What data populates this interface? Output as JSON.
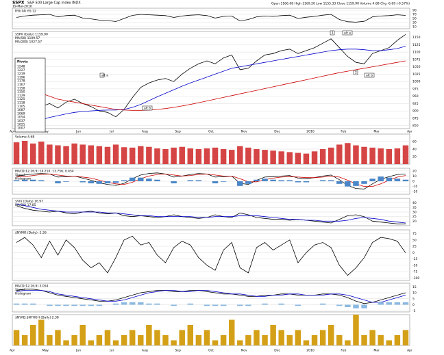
{
  "header": {
    "symbol": "$SPX",
    "name": "S&P 500 Large Cap Index INDX",
    "date": "19-Mar-2010",
    "quote": "Open 1166.68  High 1169.20  Low 1155.33  Close 1159.90  Volume 4.6B  Chg -6.69 (-0.57%)"
  },
  "months": [
    "Apr",
    "May",
    "Jun",
    "Jul",
    "Aug",
    "Sep",
    "Oct",
    "Nov",
    "Dec",
    "2010",
    "Feb",
    "Mar",
    "Apr"
  ],
  "pivots": {
    "title": "Pivots",
    "values": [
      "1248",
      "1227",
      "1219",
      "1196",
      "1178",
      "1167",
      "1158",
      "1150",
      "1129",
      "1125",
      "1118",
      "1105",
      "1087",
      "1069",
      "1054",
      "1037",
      "1021",
      "1007"
    ]
  },
  "annotations": [
    "1",
    "alt a",
    "2",
    "alt b",
    "alt a",
    "alt b"
  ],
  "chart_data": [
    {
      "type": "line",
      "ylim": [
        0,
        100
      ],
      "yticks": [
        10,
        30,
        50,
        70,
        90
      ],
      "series": [
        {
          "name": "RSI(14) 65.12",
          "color": "#000000",
          "values": [
            55,
            62,
            66,
            68,
            70,
            58,
            64,
            66,
            52,
            48,
            42,
            40,
            35,
            50,
            65,
            70,
            68,
            66,
            64,
            55,
            62,
            66,
            68,
            64,
            52,
            60,
            62,
            38,
            45,
            58,
            62,
            60,
            64,
            66,
            50,
            56,
            60,
            66,
            70,
            45,
            34,
            32,
            36,
            58,
            62,
            64,
            68,
            65
          ]
        }
      ]
    },
    {
      "type": "line",
      "ylim": [
        840,
        1170
      ],
      "yticks": [
        850,
        875,
        900,
        925,
        950,
        975,
        1000,
        1025,
        1050,
        1075,
        1100,
        1125,
        1150
      ],
      "series": [
        {
          "name": "$SPX (Daily) 1159.90",
          "color": "#000000",
          "values": [
            870,
            890,
            905,
            915,
            925,
            910,
            930,
            940,
            925,
            915,
            900,
            895,
            880,
            905,
            945,
            980,
            995,
            1005,
            1010,
            1000,
            1025,
            1045,
            1060,
            1070,
            1060,
            1080,
            1090,
            1040,
            1045,
            1070,
            1090,
            1095,
            1105,
            1110,
            1095,
            1105,
            1115,
            1130,
            1145,
            1115,
            1085,
            1065,
            1060,
            1095,
            1105,
            1115,
            1140,
            1160
          ]
        },
        {
          "name": "MA(50) 1109.57",
          "color": "#0000cc",
          "values": [
            850,
            855,
            862,
            870,
            878,
            884,
            890,
            895,
            898,
            900,
            902,
            903,
            903,
            905,
            912,
            922,
            935,
            948,
            960,
            972,
            984,
            995,
            1005,
            1015,
            1025,
            1035,
            1045,
            1050,
            1055,
            1060,
            1065,
            1070,
            1075,
            1080,
            1085,
            1090,
            1095,
            1100,
            1105,
            1108,
            1110,
            1110,
            1108,
            1105,
            1105,
            1108,
            1112,
            1120
          ]
        },
        {
          "name": "MA(200) 1027.57",
          "color": "#cc0000",
          "values": [
            990,
            980,
            970,
            960,
            950,
            940,
            935,
            930,
            925,
            920,
            915,
            910,
            905,
            903,
            902,
            902,
            903,
            905,
            908,
            912,
            917,
            922,
            928,
            934,
            940,
            946,
            952,
            958,
            964,
            970,
            976,
            982,
            988,
            994,
            1000,
            1006,
            1012,
            1018,
            1024,
            1030,
            1035,
            1040,
            1045,
            1050,
            1055,
            1060,
            1065,
            1070
          ]
        }
      ]
    },
    {
      "type": "line",
      "ylim": [
        0,
        80
      ],
      "yticks": [
        20,
        40,
        60
      ],
      "series": [
        {
          "name": "Volume 4.6B",
          "color": "#d64545",
          "style": "bar",
          "values": [
            58,
            62,
            55,
            60,
            52,
            50,
            48,
            55,
            52,
            50,
            48,
            46,
            52,
            45,
            44,
            48,
            46,
            42,
            40,
            44,
            46,
            42,
            40,
            42,
            44,
            40,
            38,
            48,
            44,
            40,
            38,
            36,
            34,
            32,
            30,
            28,
            34,
            40,
            44,
            52,
            56,
            50,
            46,
            44,
            42,
            40,
            42,
            50
          ]
        }
      ]
    },
    {
      "type": "line",
      "ylim": [
        -25,
        25
      ],
      "yticks": [
        -20,
        -10,
        0,
        10,
        20
      ],
      "series": [
        {
          "name": "MACD(12,26,9) 14.210, 13.756, 0.454",
          "color": "#000000",
          "values": [
            10,
            12,
            14,
            15,
            14,
            8,
            9,
            10,
            6,
            2,
            -3,
            -6,
            -8,
            -4,
            5,
            12,
            15,
            16,
            14,
            8,
            10,
            13,
            15,
            14,
            8,
            9,
            10,
            -4,
            -6,
            2,
            8,
            9,
            10,
            11,
            6,
            5,
            7,
            10,
            12,
            3,
            -8,
            -14,
            -15,
            -5,
            4,
            9,
            13,
            14
          ]
        },
        {
          "name": "Signal",
          "color": "#cc0000",
          "values": [
            8,
            9,
            11,
            13,
            14,
            12,
            10,
            10,
            8,
            6,
            2,
            -2,
            -5,
            -6,
            -2,
            5,
            10,
            13,
            14,
            12,
            10,
            11,
            13,
            14,
            12,
            10,
            10,
            5,
            -1,
            -1,
            3,
            6,
            8,
            9,
            8,
            7,
            7,
            8,
            10,
            8,
            2,
            -5,
            -10,
            -10,
            -5,
            2,
            8,
            11
          ]
        },
        {
          "name": "Histogram",
          "color": "#4a86c8",
          "style": "bar",
          "values": [
            2,
            3,
            3,
            2,
            0,
            -4,
            -1,
            0,
            -2,
            -4,
            -5,
            -4,
            -3,
            2,
            7,
            7,
            5,
            3,
            0,
            -4,
            0,
            2,
            2,
            0,
            -4,
            -1,
            0,
            -9,
            -5,
            3,
            5,
            3,
            2,
            2,
            -2,
            -2,
            0,
            2,
            2,
            -5,
            -10,
            -9,
            -5,
            5,
            9,
            7,
            5,
            3
          ]
        }
      ]
    },
    {
      "type": "line",
      "ylim": [
        15,
        45
      ],
      "yticks": [
        20,
        25,
        30,
        35,
        40
      ],
      "series": [
        {
          "name": "$VIX (Daily) 16.97",
          "color": "#000000",
          "values": [
            37,
            34,
            32,
            31,
            30,
            31,
            29,
            28,
            30,
            31,
            29,
            28,
            29,
            26,
            25,
            26,
            25,
            24,
            25,
            27,
            25,
            24,
            23,
            24,
            27,
            25,
            24,
            29,
            27,
            24,
            23,
            22,
            22,
            21,
            22,
            21,
            20,
            19,
            18,
            22,
            26,
            27,
            25,
            20,
            19,
            18,
            17,
            17
          ]
        },
        {
          "name": "MA(20) 17.85",
          "color": "#0000cc",
          "values": [
            39,
            37,
            35,
            33,
            32,
            31,
            30,
            30,
            30,
            30,
            30,
            29,
            29,
            28,
            27,
            26,
            26,
            25,
            25,
            25,
            25,
            25,
            24,
            24,
            25,
            25,
            25,
            26,
            26,
            26,
            25,
            24,
            23,
            22,
            22,
            21,
            21,
            20,
            20,
            20,
            21,
            23,
            24,
            23,
            22,
            20,
            19,
            18
          ]
        }
      ]
    },
    {
      "type": "line",
      "ylim": [
        -110,
        90
      ],
      "yticks": [
        -100,
        -75,
        -50,
        -25,
        0,
        25,
        50,
        75
      ],
      "series": [
        {
          "name": "$NYMO (Daily) -1.26",
          "color": "#000000",
          "values": [
            40,
            60,
            30,
            -20,
            45,
            -10,
            50,
            20,
            -30,
            -60,
            -40,
            -80,
            -20,
            50,
            65,
            30,
            40,
            -10,
            -40,
            20,
            45,
            30,
            -20,
            -50,
            -70,
            10,
            40,
            -60,
            -80,
            20,
            40,
            10,
            30,
            50,
            -40,
            0,
            30,
            40,
            20,
            -50,
            -90,
            -60,
            -20,
            40,
            60,
            55,
            45,
            -1
          ]
        }
      ]
    },
    {
      "type": "line",
      "ylim": [
        -6,
        18
      ],
      "yticks": [
        -5,
        0,
        5,
        10,
        15
      ],
      "series": [
        {
          "name": "MACD(12,26,9) 3.054",
          "color": "#000000",
          "values": [
            12,
            13,
            13,
            12,
            10,
            8,
            7,
            6,
            5,
            4,
            3,
            3,
            4,
            6,
            8,
            10,
            11,
            12,
            12,
            11,
            11,
            12,
            12,
            11,
            10,
            9,
            9,
            8,
            7,
            7,
            8,
            8,
            9,
            9,
            8,
            8,
            8,
            9,
            9,
            8,
            6,
            3,
            1,
            2,
            4,
            6,
            8,
            10
          ]
        },
        {
          "name": "Signal",
          "color": "#0000cc",
          "values": [
            11,
            12,
            12,
            12,
            11,
            9,
            8,
            7,
            6,
            5,
            4,
            3,
            3,
            4,
            6,
            8,
            10,
            11,
            12,
            12,
            11,
            11,
            12,
            12,
            11,
            10,
            9,
            9,
            8,
            7,
            7,
            8,
            8,
            9,
            9,
            8,
            8,
            8,
            9,
            9,
            8,
            6,
            4,
            2,
            2,
            4,
            6,
            8
          ]
        },
        {
          "name": "Histogram",
          "color": "#8ab8e0",
          "style": "bar",
          "values": [
            1,
            1,
            1,
            0,
            -1,
            -1,
            -1,
            -1,
            -1,
            -1,
            -1,
            0,
            1,
            2,
            2,
            2,
            1,
            1,
            0,
            -1,
            0,
            1,
            0,
            -1,
            -1,
            -1,
            0,
            -1,
            -1,
            0,
            1,
            0,
            1,
            0,
            -1,
            0,
            0,
            1,
            0,
            -1,
            -2,
            -3,
            -3,
            0,
            2,
            2,
            2,
            2
          ]
        }
      ]
    },
    {
      "type": "line",
      "ylim": [
        0,
        6
      ],
      "series": [
        {
          "name": "$NYAD:$NYHGH (Daily) 2.38",
          "color": "#d4a017",
          "style": "bar",
          "values": [
            3,
            2,
            4,
            5,
            2,
            3,
            1,
            2,
            4,
            1,
            2,
            3,
            1,
            2,
            3,
            2,
            4,
            3,
            2,
            1,
            3,
            4,
            2,
            3,
            1,
            2,
            5,
            1,
            2,
            3,
            2,
            4,
            3,
            2,
            3,
            1,
            2,
            3,
            4,
            2,
            1,
            6,
            2,
            3,
            2,
            1,
            2,
            3
          ]
        }
      ]
    }
  ]
}
